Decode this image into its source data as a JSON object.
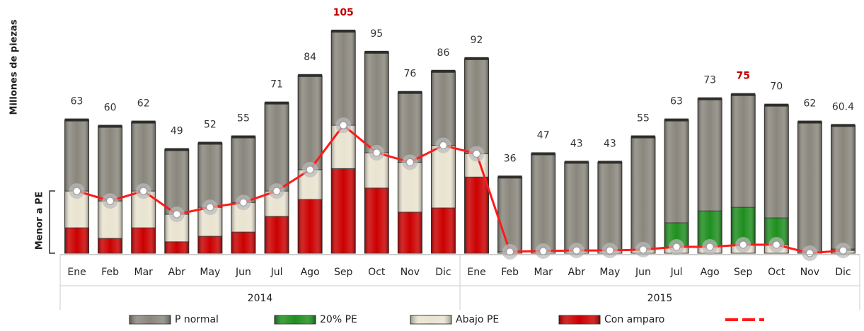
{
  "chart_data": {
    "type": "bar",
    "y_label": "Millones de piezas",
    "annotation": "Menor a PE",
    "categories": [
      "Ene",
      "Feb",
      "Mar",
      "Abr",
      "May",
      "Jun",
      "Jul",
      "Ago",
      "Sep",
      "Oct",
      "Nov",
      "Dic",
      "Ene",
      "Feb",
      "Mar",
      "Abr",
      "May",
      "Jun",
      "Jul",
      "Ago",
      "Sep",
      "Oct",
      "Nov",
      "Dic"
    ],
    "groups": [
      "2014",
      "2015"
    ],
    "ylim": [
      0,
      110
    ],
    "series": [
      {
        "name": "P normal",
        "color": "#8a877d",
        "values": [
          33.6,
          35.3,
          32.6,
          30.6,
          30.3,
          31,
          41.6,
          44.5,
          44.5,
          47.5,
          33,
          35,
          45,
          35.3,
          46,
          41.7,
          41.7,
          53.3,
          48.6,
          53,
          53.3,
          53.3,
          62,
          58.4
        ]
      },
      {
        "name": "20% PE",
        "color": "#1f8f1f",
        "values": [
          0,
          0,
          0,
          0,
          0,
          0,
          0,
          0,
          0,
          0,
          0,
          0,
          0,
          0,
          0,
          0,
          0,
          0,
          11.4,
          17,
          17.7,
          12.7,
          0,
          0.7
        ]
      },
      {
        "name": "Abajo PE",
        "color": "#e9e3d0",
        "values": [
          17.4,
          17.7,
          17.4,
          13,
          13.7,
          14,
          12,
          14.1,
          20.5,
          16.7,
          23.6,
          29.6,
          11,
          0.7,
          1,
          1.3,
          1.3,
          1.7,
          3,
          3,
          4,
          4,
          0,
          1.3
        ]
      },
      {
        "name": "Con amparo",
        "color": "#cc0000",
        "values": [
          12,
          7,
          12,
          5.4,
          8,
          10,
          17.4,
          25.4,
          40,
          30.8,
          19.4,
          21.4,
          36,
          0,
          0,
          0,
          0,
          0,
          0,
          0,
          0,
          0,
          0,
          0
        ]
      },
      {
        "type": "line",
        "color": "#ff1a1a",
        "values": [
          29.4,
          24.7,
          29.4,
          18.4,
          21.7,
          24,
          29.4,
          39.5,
          60.5,
          47.5,
          43,
          51,
          47,
          0.7,
          1,
          1.3,
          1.3,
          1.7,
          3,
          3,
          4,
          4,
          0,
          1.3
        ]
      }
    ],
    "totals": [
      63,
      60,
      62,
      49,
      52,
      55,
      71,
      84,
      105,
      95,
      76,
      86,
      92,
      36,
      47,
      43,
      43,
      55,
      63,
      73,
      75,
      70,
      62,
      60.4
    ],
    "total_label_colors": [
      "#333",
      "#333",
      "#333",
      "#333",
      "#333",
      "#333",
      "#333",
      "#333",
      "#c00000",
      "#333",
      "#333",
      "#333",
      "#333",
      "#333",
      "#333",
      "#333",
      "#333",
      "#333",
      "#333",
      "#333",
      "#c00000",
      "#333",
      "#333",
      "#333"
    ]
  }
}
